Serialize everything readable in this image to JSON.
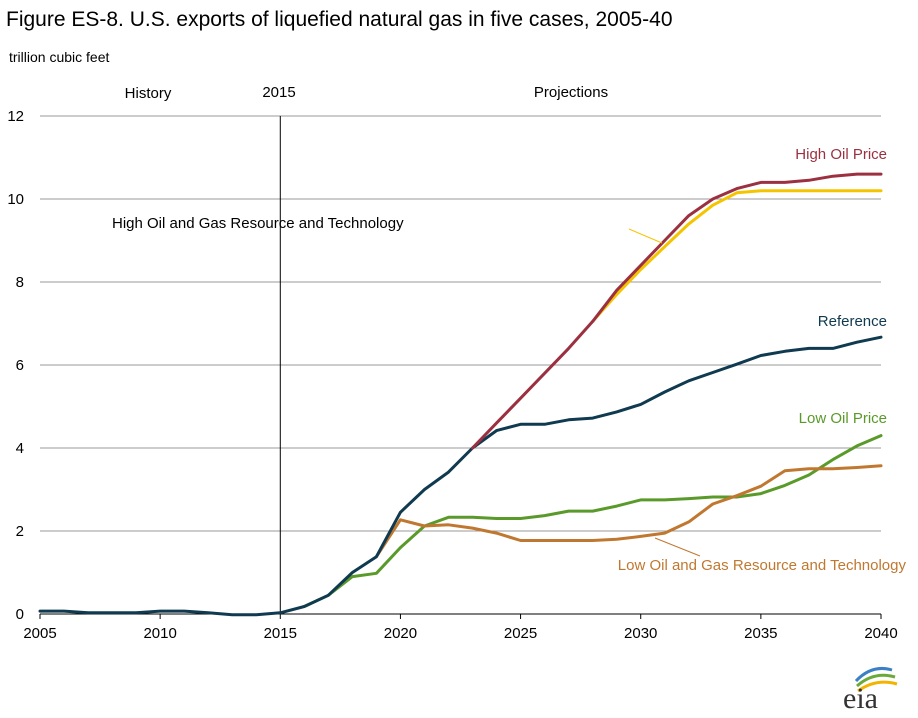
{
  "chart_data": {
    "type": "line",
    "title": "Figure ES-8. U.S. exports of liquefied natural gas in five cases, 2005-40",
    "ylabel": "trillion cubic feet",
    "xlabel": "",
    "xlim": [
      2005,
      2040
    ],
    "ylim": [
      0,
      12
    ],
    "x_ticks": [
      "2005",
      "2010",
      "2015",
      "2020",
      "2025",
      "2030",
      "2035",
      "2040"
    ],
    "y_ticks": [
      "0",
      "2",
      "4",
      "6",
      "8",
      "10",
      "12"
    ],
    "grid": "horizontal",
    "annotations": {
      "history": "History",
      "divider_year": "2015",
      "projections": "Projections"
    },
    "logo_text": "eia",
    "series": [
      {
        "name": "High Oil Price",
        "color": "#9b3040",
        "x": [
          2023,
          2024,
          2025,
          2026,
          2027,
          2028,
          2029,
          2030,
          2031,
          2032,
          2033,
          2034,
          2035,
          2036,
          2037,
          2038,
          2039,
          2040
        ],
        "values": [
          4.0,
          4.6,
          5.2,
          5.8,
          6.4,
          7.05,
          7.8,
          8.4,
          9.0,
          9.6,
          10.0,
          10.25,
          10.4,
          10.4,
          10.45,
          10.55,
          10.6,
          10.6
        ]
      },
      {
        "name": "High Oil and Gas Resource and Technology",
        "color": "#f5c400",
        "x": [
          2028,
          2029,
          2030,
          2031,
          2032,
          2033,
          2034,
          2035,
          2036,
          2037,
          2038,
          2039,
          2040
        ],
        "values": [
          7.05,
          7.7,
          8.3,
          8.85,
          9.4,
          9.85,
          10.15,
          10.2,
          10.2,
          10.2,
          10.2,
          10.2,
          10.2
        ]
      },
      {
        "name": "Reference",
        "color": "#0f3a4f",
        "x": [
          2005,
          2006,
          2007,
          2008,
          2009,
          2010,
          2011,
          2012,
          2013,
          2014,
          2015,
          2016,
          2017,
          2018,
          2019,
          2020,
          2021,
          2022,
          2023,
          2024,
          2025,
          2026,
          2027,
          2028,
          2029,
          2030,
          2031,
          2032,
          2033,
          2034,
          2035,
          2036,
          2037,
          2038,
          2039,
          2040
        ],
        "values": [
          0.07,
          0.07,
          0.03,
          0.03,
          0.03,
          0.07,
          0.07,
          0.03,
          -0.02,
          -0.02,
          0.03,
          0.18,
          0.45,
          1.0,
          1.38,
          2.45,
          3.0,
          3.42,
          4.0,
          4.42,
          4.57,
          4.57,
          4.68,
          4.72,
          4.87,
          5.05,
          5.35,
          5.62,
          5.82,
          6.02,
          6.23,
          6.33,
          6.4,
          6.4,
          6.55,
          6.67
        ]
      },
      {
        "name": "Low Oil Price",
        "color": "#5a9a2a",
        "x": [
          2016,
          2017,
          2018,
          2019,
          2020,
          2021,
          2022,
          2023,
          2024,
          2025,
          2026,
          2027,
          2028,
          2029,
          2030,
          2031,
          2032,
          2033,
          2034,
          2035,
          2036,
          2037,
          2038,
          2039,
          2040
        ],
        "values": [
          0.18,
          0.45,
          0.9,
          0.98,
          1.6,
          2.12,
          2.33,
          2.33,
          2.3,
          2.3,
          2.37,
          2.48,
          2.48,
          2.6,
          2.75,
          2.75,
          2.78,
          2.82,
          2.82,
          2.9,
          3.1,
          3.35,
          3.72,
          4.05,
          4.3
        ]
      },
      {
        "name": "Low Oil and Gas Resource and Technology",
        "color": "#c07830",
        "x": [
          2019,
          2020,
          2021,
          2022,
          2023,
          2024,
          2025,
          2026,
          2027,
          2028,
          2029,
          2030,
          2031,
          2032,
          2033,
          2034,
          2035,
          2036,
          2037,
          2038,
          2039,
          2040
        ],
        "values": [
          1.38,
          2.27,
          2.12,
          2.15,
          2.07,
          1.95,
          1.77,
          1.77,
          1.77,
          1.77,
          1.8,
          1.87,
          1.95,
          2.22,
          2.65,
          2.85,
          3.08,
          3.45,
          3.5,
          3.5,
          3.53,
          3.57
        ]
      }
    ],
    "series_order": [
      3,
      4,
      2,
      1,
      0
    ]
  }
}
